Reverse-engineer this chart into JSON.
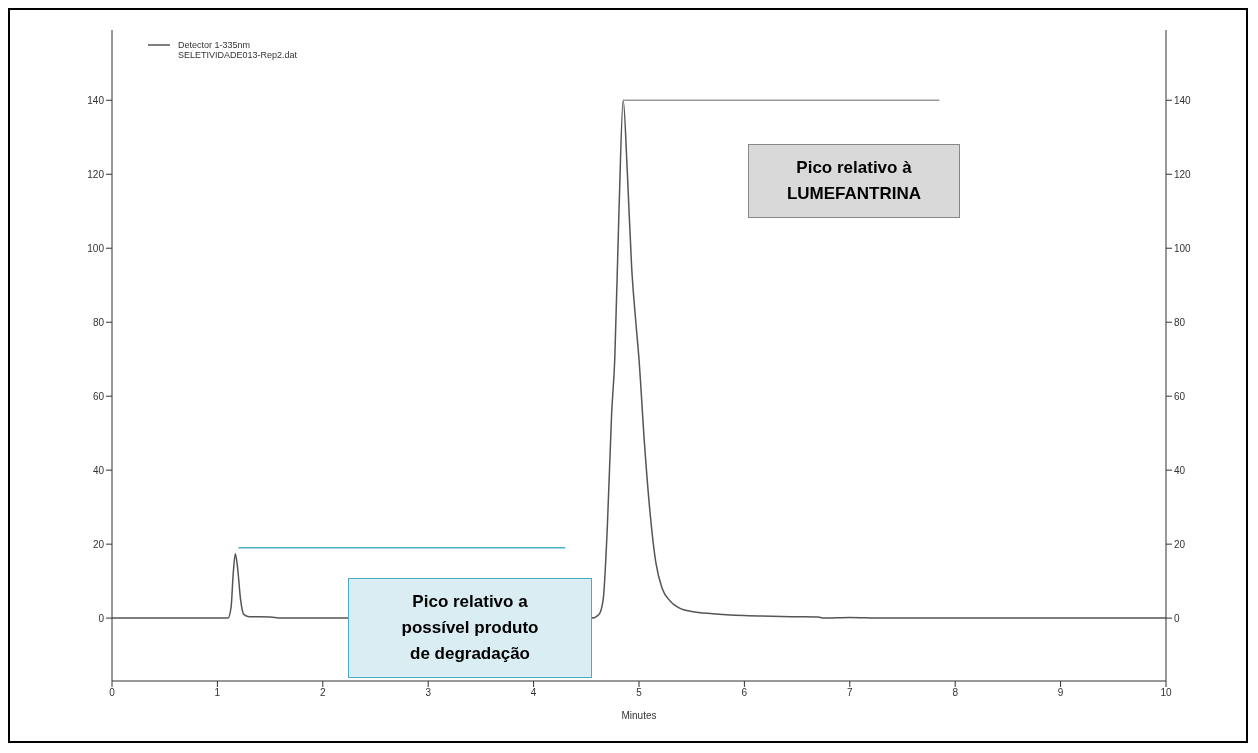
{
  "chart_data": {
    "type": "line",
    "xlabel": "Minutes",
    "legend": "top left",
    "marker": "none",
    "line_style": "solid",
    "xlim": [
      0,
      10
    ],
    "xticks": [
      0,
      1,
      2,
      3,
      4,
      5,
      6,
      7,
      8,
      9,
      10
    ],
    "ylim": [
      -17,
      159
    ],
    "yticks": [
      0,
      20,
      40,
      60,
      80,
      100,
      120,
      140
    ],
    "y2lim": [
      -17,
      159
    ],
    "y2ticks": [
      0,
      20,
      40,
      60,
      80,
      100,
      120,
      140
    ],
    "series": [
      {
        "name": "Detector 1-335nm\nSELETIVIDADE013-Rep2.dat",
        "color": "#555555",
        "x": [
          0,
          1.1,
          1.13,
          1.15,
          1.17,
          1.19,
          1.22,
          1.25,
          1.3,
          1.5,
          1.6,
          4.55,
          4.62,
          4.66,
          4.7,
          4.74,
          4.77,
          4.81,
          4.85,
          4.89,
          4.93,
          4.97,
          5.0,
          5.05,
          5.1,
          5.16,
          5.22,
          5.3,
          5.4,
          5.5,
          5.7,
          6,
          6.5,
          6.7,
          6.75,
          7,
          7.3,
          10
        ],
        "values": [
          0,
          0,
          3,
          12,
          17.4,
          14,
          5,
          1,
          0.4,
          0.3,
          0,
          0,
          1,
          5,
          25,
          55,
          70,
          110,
          140,
          120,
          95,
          80,
          70,
          48,
          30,
          15,
          8,
          4.5,
          2.5,
          1.8,
          1.2,
          0.7,
          0.4,
          0.3,
          0,
          0.2,
          0,
          0
        ]
      },
      {
        "type": "line",
        "color": "#999999",
        "x": [
          4.85,
          7.85
        ],
        "values": [
          140,
          140
        ]
      },
      {
        "type": "line",
        "color": "#4bacc6",
        "x": [
          1.2,
          4.3
        ],
        "values": [
          19,
          19
        ]
      }
    ],
    "annotations": [
      "Pico relativo a\npossível produto\nde degradação",
      "Pico relativo à\nLUMEFANTRINA"
    ]
  }
}
